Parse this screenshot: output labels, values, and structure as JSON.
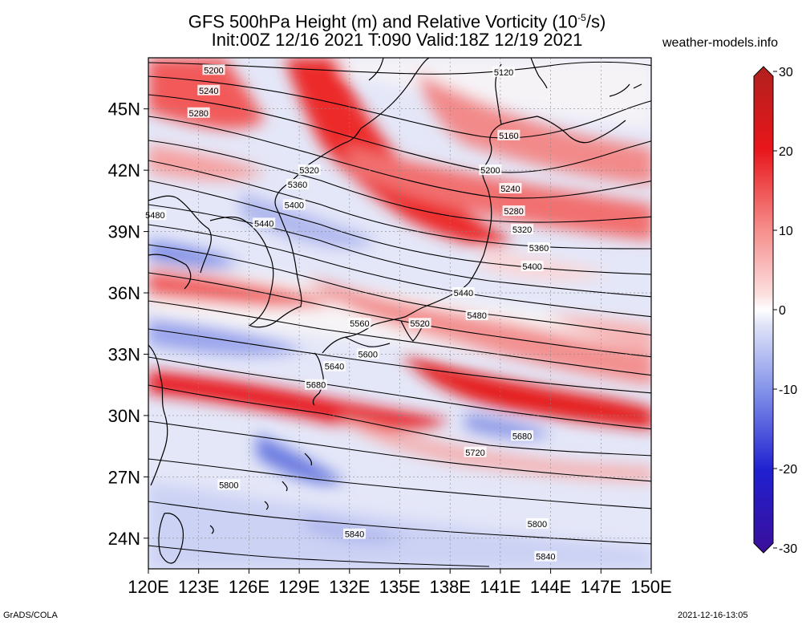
{
  "title_line1": "GFS 500hPa Height (m) and Relative Vorticity (10",
  "title_exp": "-5",
  "title_line1_end": "/s)",
  "title_line2": "Init:00Z 12/16 2021 T:090 Valid:18Z 12/19 2021",
  "site": "weather-models.info",
  "footer_left": "GrADS/COLA",
  "footer_right": "2021-12-16-13:05",
  "map": {
    "lat_labels": [
      "45N",
      "42N",
      "39N",
      "36N",
      "33N",
      "30N",
      "27N",
      "24N"
    ],
    "lat_values": [
      45,
      42,
      39,
      36,
      33,
      30,
      27,
      24
    ],
    "lon_labels": [
      "120E",
      "123E",
      "126E",
      "129E",
      "132E",
      "135E",
      "138E",
      "141E",
      "144E",
      "147E",
      "150E"
    ],
    "lon_values": [
      120,
      123,
      126,
      129,
      132,
      135,
      138,
      141,
      144,
      147,
      150
    ],
    "lat_range": [
      22.5,
      47.5
    ],
    "lon_range": [
      120,
      150
    ]
  },
  "colorbar": {
    "labels": [
      "30",
      "20",
      "10",
      "0",
      "-10",
      "-20",
      "-30"
    ],
    "values": [
      30,
      20,
      10,
      0,
      -10,
      -20,
      -30
    ],
    "colors": {
      "max": "#b0201e",
      "pos_strong": "#e8161a",
      "pos_mid": "#f27a7a",
      "zero": "#ffffff",
      "neg_mid": "#8090e8",
      "neg_strong": "#2020d0",
      "min": "#3b0f9a"
    }
  },
  "contour_labels": [
    {
      "text": "5120",
      "lon": 141.2,
      "lat": 46.8
    },
    {
      "text": "5160",
      "lon": 141.5,
      "lat": 43.7
    },
    {
      "text": "5200",
      "lon": 123.9,
      "lat": 46.9
    },
    {
      "text": "5200",
      "lon": 140.4,
      "lat": 42.0
    },
    {
      "text": "5240",
      "lon": 123.6,
      "lat": 45.9
    },
    {
      "text": "5240",
      "lon": 141.6,
      "lat": 41.1
    },
    {
      "text": "5280",
      "lon": 123.0,
      "lat": 44.8
    },
    {
      "text": "5280",
      "lon": 141.8,
      "lat": 40.0
    },
    {
      "text": "5320",
      "lon": 129.6,
      "lat": 42.0
    },
    {
      "text": "5320",
      "lon": 142.3,
      "lat": 39.1
    },
    {
      "text": "5360",
      "lon": 128.9,
      "lat": 41.3
    },
    {
      "text": "5360",
      "lon": 143.3,
      "lat": 38.2
    },
    {
      "text": "5400",
      "lon": 128.7,
      "lat": 40.3
    },
    {
      "text": "5400",
      "lon": 142.9,
      "lat": 37.3
    },
    {
      "text": "5440",
      "lon": 126.9,
      "lat": 39.4
    },
    {
      "text": "5440",
      "lon": 138.8,
      "lat": 36.0
    },
    {
      "text": "5480",
      "lon": 120.4,
      "lat": 39.8
    },
    {
      "text": "5480",
      "lon": 139.6,
      "lat": 34.9
    },
    {
      "text": "5520",
      "lon": 136.2,
      "lat": 34.5
    },
    {
      "text": "5560",
      "lon": 132.6,
      "lat": 34.5
    },
    {
      "text": "5600",
      "lon": 133.1,
      "lat": 33.0
    },
    {
      "text": "5640",
      "lon": 131.1,
      "lat": 32.4
    },
    {
      "text": "5680",
      "lon": 130.0,
      "lat": 31.5
    },
    {
      "text": "5680",
      "lon": 142.3,
      "lat": 29.0
    },
    {
      "text": "5720",
      "lon": 139.5,
      "lat": 28.2
    },
    {
      "text": "5800",
      "lon": 124.8,
      "lat": 26.6
    },
    {
      "text": "5800",
      "lon": 143.2,
      "lat": 24.7
    },
    {
      "text": "5840",
      "lon": 132.3,
      "lat": 24.2
    },
    {
      "text": "5840",
      "lon": 143.7,
      "lat": 23.1
    }
  ]
}
